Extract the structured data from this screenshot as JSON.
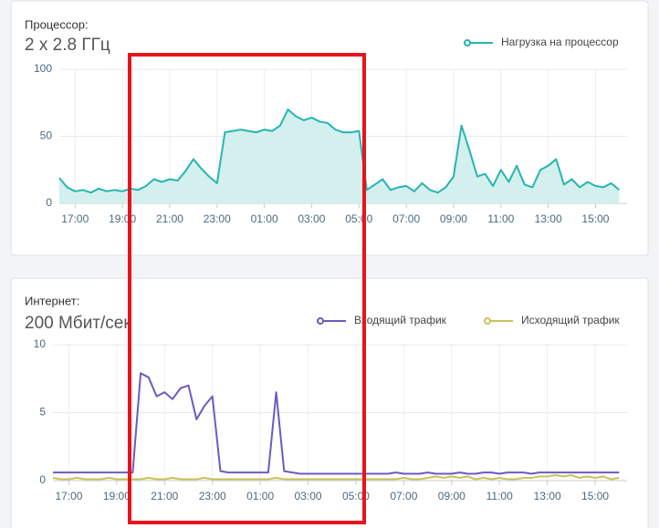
{
  "chart_data": [
    {
      "type": "area",
      "label": "Процессор:",
      "title": "2 x 2.8 ГГц",
      "categories": [
        null,
        null,
        "17:00",
        null,
        null,
        null,
        null,
        null,
        "19:00",
        null,
        null,
        null,
        null,
        null,
        "21:00",
        null,
        null,
        null,
        null,
        null,
        "23:00",
        null,
        null,
        null,
        null,
        null,
        "01:00",
        null,
        null,
        null,
        null,
        null,
        "03:00",
        null,
        null,
        null,
        null,
        null,
        "05:00",
        null,
        null,
        null,
        null,
        null,
        "07:00",
        null,
        null,
        null,
        null,
        null,
        "09:00",
        null,
        null,
        null,
        null,
        null,
        "11:00",
        null,
        null,
        null,
        null,
        null,
        "13:00",
        null,
        null,
        null,
        null,
        null,
        "15:00",
        null,
        null,
        null
      ],
      "series": [
        {
          "name": "Нагрузка на процессор",
          "color": "#26b5b0",
          "fill": "#d3efee",
          "values": [
            19,
            12,
            9,
            10,
            8,
            11,
            9,
            10,
            9,
            11,
            10,
            13,
            18,
            16,
            18,
            17,
            24,
            33,
            26,
            20,
            15,
            53,
            54,
            55,
            54,
            53,
            55,
            54,
            58,
            70,
            65,
            62,
            64,
            61,
            60,
            55,
            53,
            53,
            54,
            10,
            14,
            18,
            10,
            12,
            13,
            9,
            15,
            10,
            8,
            12,
            20,
            58,
            40,
            20,
            22,
            13,
            25,
            16,
            28,
            14,
            12,
            25,
            28,
            33,
            14,
            18,
            12,
            16,
            13,
            12,
            15,
            10
          ]
        }
      ],
      "ylim": [
        0,
        100
      ],
      "yticks": [
        0,
        50,
        100
      ],
      "grid": true,
      "legend": "top-right"
    },
    {
      "type": "line",
      "label": "Интернет:",
      "title": "200 Мбит/сек",
      "categories": [
        null,
        null,
        "17:00",
        null,
        null,
        null,
        null,
        null,
        "19:00",
        null,
        null,
        null,
        null,
        null,
        "21:00",
        null,
        null,
        null,
        null,
        null,
        "23:00",
        null,
        null,
        null,
        null,
        null,
        "01:00",
        null,
        null,
        null,
        null,
        null,
        "03:00",
        null,
        null,
        null,
        null,
        null,
        "05:00",
        null,
        null,
        null,
        null,
        null,
        "07:00",
        null,
        null,
        null,
        null,
        null,
        "09:00",
        null,
        null,
        null,
        null,
        null,
        "11:00",
        null,
        null,
        null,
        null,
        null,
        "13:00",
        null,
        null,
        null,
        null,
        null,
        "15:00",
        null,
        null,
        null
      ],
      "series": [
        {
          "name": "Входящий трафик",
          "color": "#6c5bbf",
          "values": [
            0.6,
            0.6,
            0.6,
            0.6,
            0.6,
            0.6,
            0.6,
            0.6,
            0.6,
            0.6,
            0.6,
            7.9,
            7.6,
            6.2,
            6.5,
            6.0,
            6.8,
            7.0,
            4.5,
            5.5,
            6.2,
            0.7,
            0.6,
            0.6,
            0.6,
            0.6,
            0.6,
            0.6,
            6.5,
            0.7,
            0.6,
            0.5,
            0.5,
            0.5,
            0.5,
            0.5,
            0.5,
            0.5,
            0.5,
            0.5,
            0.5,
            0.5,
            0.5,
            0.6,
            0.5,
            0.5,
            0.5,
            0.6,
            0.5,
            0.5,
            0.5,
            0.6,
            0.5,
            0.5,
            0.6,
            0.6,
            0.5,
            0.6,
            0.6,
            0.6,
            0.5,
            0.6,
            0.6,
            0.6,
            0.6,
            0.6,
            0.6,
            0.6,
            0.6,
            0.6,
            0.6,
            0.6
          ]
        },
        {
          "name": "Исходящий трафик",
          "color": "#c8c35a",
          "values": [
            0.2,
            0.1,
            0.1,
            0.2,
            0.1,
            0.1,
            0.1,
            0.2,
            0.1,
            0.1,
            0.1,
            0.1,
            0.2,
            0.1,
            0.1,
            0.2,
            0.1,
            0.1,
            0.1,
            0.2,
            0.1,
            0.1,
            0.1,
            0.1,
            0.1,
            0.1,
            0.1,
            0.1,
            0.2,
            0.1,
            0.1,
            0.1,
            0.1,
            0.1,
            0.1,
            0.1,
            0.1,
            0.1,
            0.1,
            0.1,
            0.1,
            0.1,
            0.1,
            0.1,
            0.2,
            0.1,
            0.1,
            0.2,
            0.3,
            0.2,
            0.3,
            0.2,
            0.3,
            0.1,
            0.2,
            0.1,
            0.2,
            0.1,
            0.1,
            0.2,
            0.2,
            0.3,
            0.3,
            0.4,
            0.3,
            0.4,
            0.2,
            0.3,
            0.2,
            0.3,
            0.1,
            0.2
          ]
        }
      ],
      "ylim": [
        0,
        10
      ],
      "yticks": [
        0,
        5,
        10
      ],
      "grid": true,
      "legend": "top-right"
    }
  ]
}
